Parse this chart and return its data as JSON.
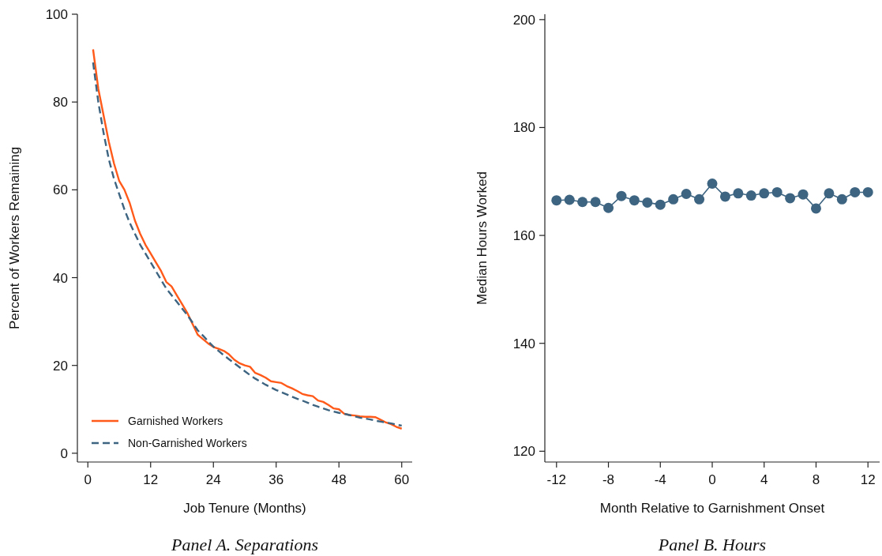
{
  "chart_data": [
    {
      "type": "line",
      "title": "Panel A. Separations",
      "xlabel": "Job Tenure (Months)",
      "ylabel": "Percent of Workers Remaining",
      "xlim": [
        -2,
        62
      ],
      "ylim": [
        -2,
        100
      ],
      "xticks": [
        0,
        12,
        24,
        36,
        48,
        60
      ],
      "yticks": [
        0,
        20,
        40,
        60,
        80,
        100
      ],
      "grid": false,
      "legend": "bottom left",
      "marker": "none",
      "x": [
        1,
        2,
        3,
        4,
        5,
        6,
        7,
        8,
        9,
        10,
        11,
        12,
        13,
        14,
        15,
        16,
        17,
        18,
        19,
        20,
        21,
        22,
        23,
        24,
        25,
        26,
        27,
        28,
        29,
        30,
        31,
        32,
        33,
        34,
        35,
        36,
        37,
        38,
        39,
        40,
        41,
        42,
        43,
        44,
        45,
        46,
        47,
        48,
        49,
        50,
        51,
        52,
        53,
        54,
        55,
        56,
        57,
        58,
        59,
        60
      ],
      "series": [
        {
          "name": "Garnished Workers",
          "color": "#ff5a1a",
          "line_style": "solid",
          "values": [
            92,
            83,
            77,
            71,
            66,
            62,
            60,
            57,
            53,
            50,
            47.5,
            45.5,
            43.5,
            41.5,
            39,
            38,
            36,
            34,
            32,
            29.5,
            27,
            26,
            25,
            24.2,
            23.8,
            23.3,
            22.5,
            21.3,
            20.5,
            20,
            19.7,
            18.3,
            17.8,
            17.2,
            16.4,
            16.2,
            16,
            15.3,
            14.8,
            14.2,
            13.5,
            13.2,
            13,
            12,
            11.7,
            11,
            10.2,
            10,
            9,
            8.7,
            8.6,
            8.4,
            8.3,
            8.3,
            8.2,
            7.6,
            7,
            6.6,
            6,
            5.6
          ]
        },
        {
          "name": "Non-Garnished Workers",
          "color": "#3d6480",
          "line_style": "dashed",
          "values": [
            89,
            80,
            73,
            67,
            62.5,
            59,
            55.5,
            52.5,
            50,
            47.5,
            45.5,
            43.5,
            41.5,
            39.5,
            37.5,
            36,
            34.5,
            33,
            31.5,
            29.8,
            28,
            26.8,
            25.5,
            24.3,
            23.3,
            22.3,
            21.4,
            20.5,
            19.6,
            18.7,
            17.8,
            17,
            16.3,
            15.6,
            15,
            14.4,
            13.9,
            13.4,
            12.9,
            12.4,
            12,
            11.5,
            11,
            10.6,
            10.2,
            9.8,
            9.5,
            9.2,
            9,
            8.7,
            8.4,
            8.1,
            7.9,
            7.7,
            7.4,
            7.2,
            7,
            6.8,
            6.5,
            6.3
          ]
        }
      ]
    },
    {
      "type": "line",
      "title": "Panel B. Hours",
      "xlabel": "Month Relative to Garnishment Onset",
      "ylabel": "Median Hours Worked",
      "xlim": [
        -12.9,
        12.9
      ],
      "ylim": [
        118,
        201
      ],
      "xticks": [
        -12,
        -8,
        -4,
        0,
        4,
        8,
        12
      ],
      "yticks": [
        120,
        140,
        160,
        180,
        200
      ],
      "grid": false,
      "legend": false,
      "marker": "circle",
      "x": [
        -12,
        -11,
        -10,
        -9,
        -8,
        -7,
        -6,
        -5,
        -4,
        -3,
        -2,
        -1,
        0,
        1,
        2,
        3,
        4,
        5,
        6,
        7,
        8,
        9,
        10,
        11,
        12
      ],
      "series": [
        {
          "color": "#3d6480",
          "line_style": "solid",
          "values": [
            166.5,
            166.6,
            166.2,
            166.2,
            165.1,
            167.3,
            166.5,
            166.1,
            165.7,
            166.7,
            167.7,
            166.7,
            169.6,
            167.2,
            167.8,
            167.4,
            167.8,
            168.0,
            166.9,
            167.6,
            165.0,
            167.8,
            166.7,
            168.0,
            168.0
          ]
        }
      ]
    }
  ]
}
